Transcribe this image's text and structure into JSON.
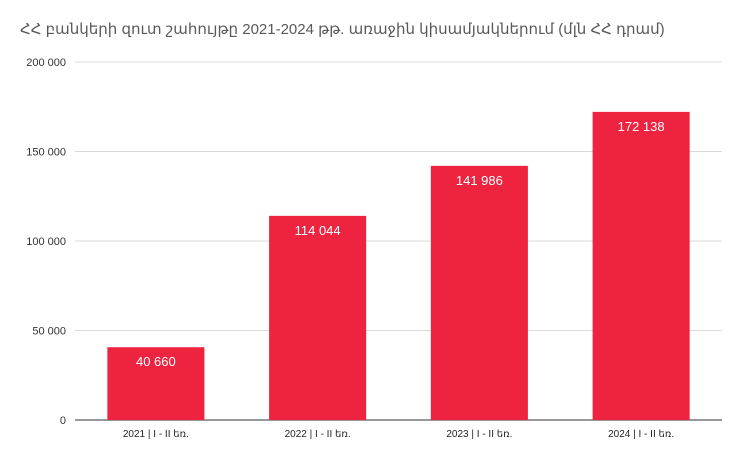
{
  "chart_data": {
    "type": "bar",
    "title": "ՀՀ բանկերի զուտ շահույթը 2021-2024 թթ. առաջին կիսամյակներում (մլն ՀՀ դրամ)",
    "categories": [
      "2021 | I - II եռ.",
      "2022 | I - II եռ.",
      "2023 | I - II եռ.",
      "2024 | I - II եռ."
    ],
    "values": [
      40660,
      114044,
      141986,
      172138
    ],
    "value_labels": [
      "40 660",
      "114 044",
      "141 986",
      "172 138"
    ],
    "ylim": [
      0,
      200000
    ],
    "yticks": [
      0,
      50000,
      100000,
      150000,
      200000
    ],
    "ytick_labels": [
      "0",
      "50 000",
      "100 000",
      "150 000",
      "200 000"
    ],
    "xlabel": "",
    "ylabel": "",
    "grid": true,
    "bar_color": "#ee2340",
    "grid_color": "#d9d9d9"
  }
}
